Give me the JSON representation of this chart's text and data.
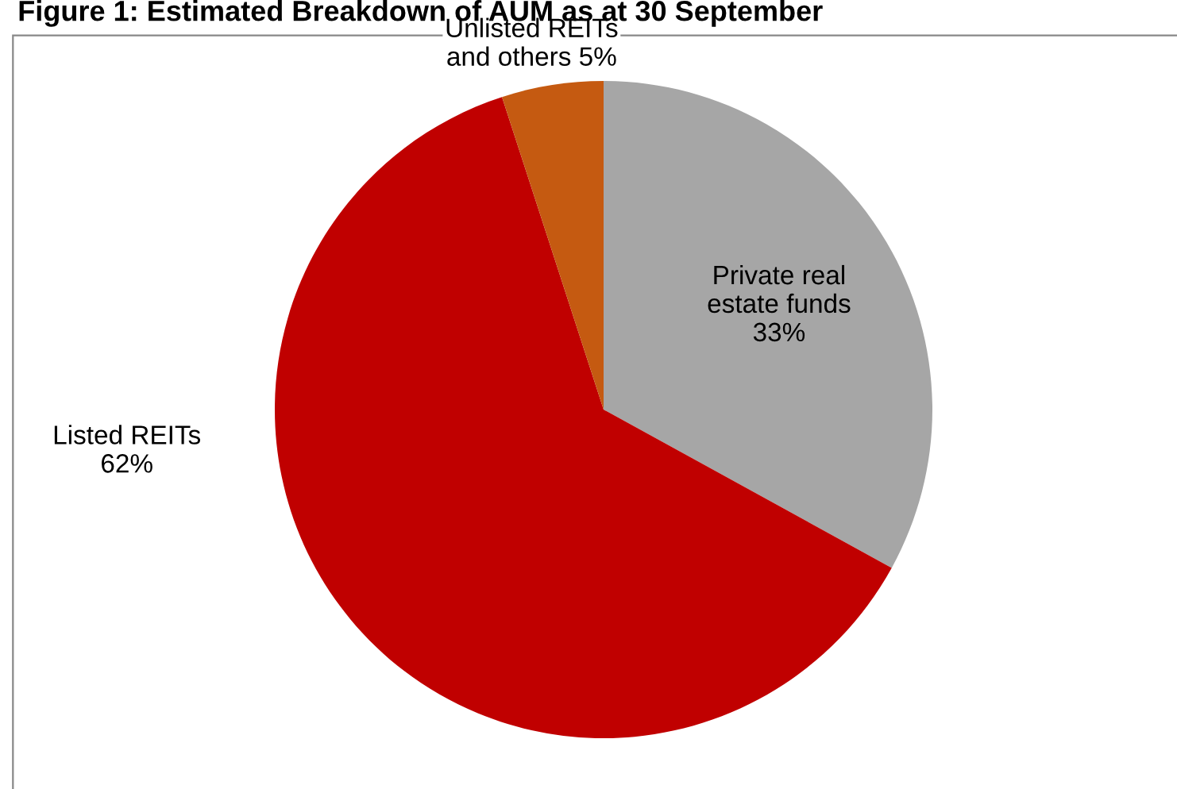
{
  "chart_data": {
    "type": "pie",
    "title": "Figure 1: Estimated Breakdown of AUM as at 30 September",
    "categories": [
      "Private real\nestate funds",
      "Listed REITs",
      "Unlisted REITs\nand others"
    ],
    "values": [
      33,
      62,
      5
    ],
    "colors": [
      "#a6a6a6",
      "#c00000",
      "#c55a11"
    ],
    "value_labels": [
      "33%",
      "62%",
      "5%"
    ],
    "legend": false
  }
}
